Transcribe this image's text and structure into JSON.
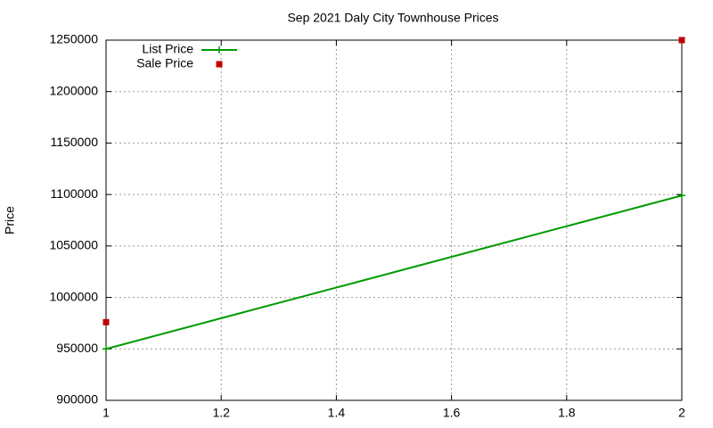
{
  "chart_data": {
    "type": "line",
    "title": "Sep 2021 Daly City Townhouse Prices",
    "y_label": "Price",
    "x": [
      1,
      2
    ],
    "series": [
      {
        "name": "List Price",
        "color": "#009a00",
        "style": "linespoints",
        "values": [
          950000,
          1099000
        ]
      },
      {
        "name": "Sale Price",
        "color": "#c00000",
        "style": "points",
        "values": [
          976000,
          1250000
        ]
      }
    ],
    "xlim": [
      1,
      2
    ],
    "xticks": [
      1,
      1.2,
      1.4,
      1.6,
      1.8,
      2
    ],
    "ylim": [
      900000,
      1250000
    ],
    "yticks": [
      900000,
      950000,
      1000000,
      1050000,
      1100000,
      1150000,
      1200000,
      1250000
    ],
    "grid": true,
    "legend": "top-left"
  }
}
